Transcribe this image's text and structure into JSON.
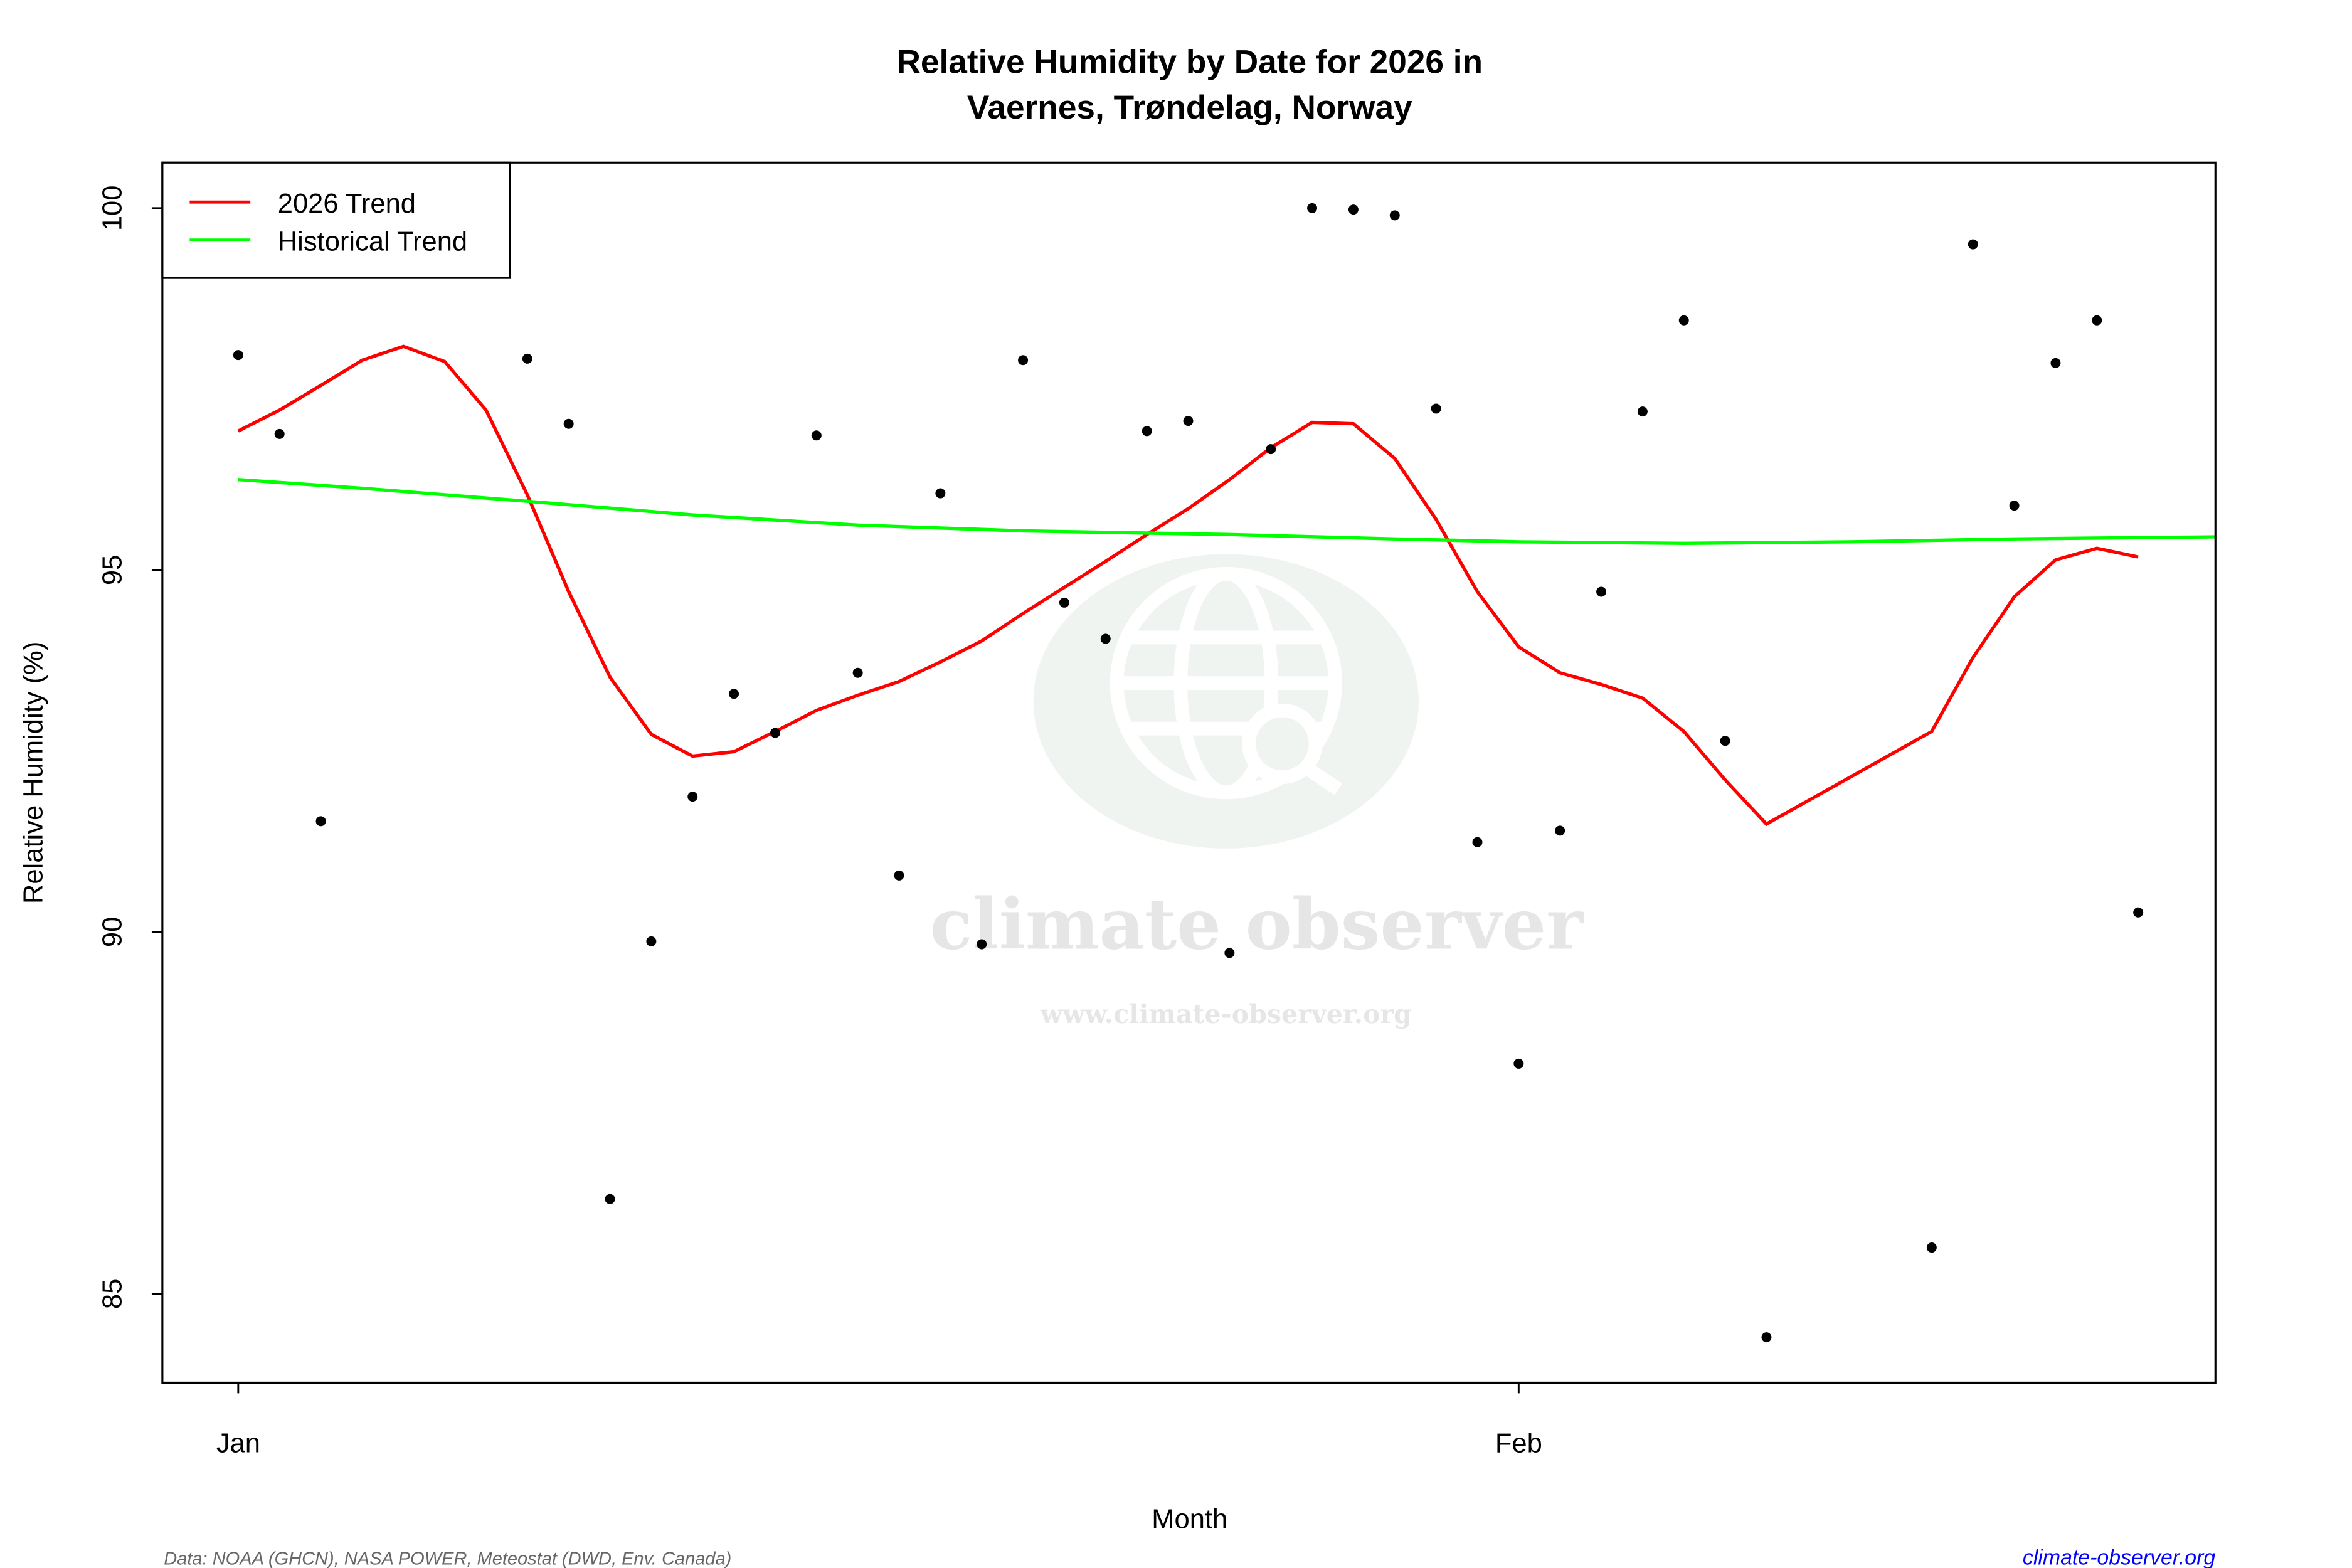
{
  "chart_data": {
    "type": "scatter",
    "title": "Relative Humidity by Date for 2026 in",
    "subtitle": "Vaernes, Trøndelag, Norway",
    "xlabel": "Month",
    "ylabel": "Relative Humidity (%)",
    "xlim": [
      "2025-12-30",
      "2026-02-17"
    ],
    "ylim": [
      83.8,
      100.6
    ],
    "x_ticks": [
      {
        "date": "2026-01-01",
        "label": "Jan"
      },
      {
        "date": "2026-02-01",
        "label": "Feb"
      }
    ],
    "y_ticks": [
      85,
      90,
      95,
      100
    ],
    "grid": false,
    "legend": {
      "placement": "top-left",
      "entries": [
        {
          "label": "2026 Trend",
          "color": "#ff0000"
        },
        {
          "label": "Historical Trend",
          "color": "#00ff00"
        }
      ]
    },
    "series": [
      {
        "type": "scatter",
        "color": "#000000",
        "points": [
          [
            "2026-01-01",
            97.97
          ],
          [
            "2026-01-02",
            96.88
          ],
          [
            "2026-01-03",
            91.53
          ],
          [
            "2026-01-08",
            97.92
          ],
          [
            "2026-01-09",
            97.02
          ],
          [
            "2026-01-10",
            86.31
          ],
          [
            "2026-01-11",
            89.87
          ],
          [
            "2026-01-12",
            91.87
          ],
          [
            "2026-01-13",
            93.29
          ],
          [
            "2026-01-14",
            92.75
          ],
          [
            "2026-01-15",
            96.86
          ],
          [
            "2026-01-16",
            93.58
          ],
          [
            "2026-01-17",
            90.78
          ],
          [
            "2026-01-18",
            96.06
          ],
          [
            "2026-01-19",
            89.83
          ],
          [
            "2026-01-20",
            97.9
          ],
          [
            "2026-01-21",
            94.55
          ],
          [
            "2026-01-22",
            94.05
          ],
          [
            "2026-01-23",
            96.92
          ],
          [
            "2026-01-24",
            97.06
          ],
          [
            "2026-01-25",
            89.71
          ],
          [
            "2026-01-26",
            96.67
          ],
          [
            "2026-01-27",
            100.0
          ],
          [
            "2026-01-28",
            99.98
          ],
          [
            "2026-01-29",
            99.9
          ],
          [
            "2026-01-30",
            97.23
          ],
          [
            "2026-01-31",
            91.24
          ],
          [
            "2026-02-01",
            88.18
          ],
          [
            "2026-02-02",
            91.4
          ],
          [
            "2026-02-03",
            94.7
          ],
          [
            "2026-02-04",
            97.19
          ],
          [
            "2026-02-05",
            98.45
          ],
          [
            "2026-02-06",
            92.64
          ],
          [
            "2026-02-07",
            84.4
          ],
          [
            "2026-02-11",
            85.64
          ],
          [
            "2026-02-12",
            99.5
          ],
          [
            "2026-02-13",
            95.89
          ],
          [
            "2026-02-14",
            97.86
          ],
          [
            "2026-02-15",
            98.45
          ],
          [
            "2026-02-16",
            90.27
          ]
        ]
      },
      {
        "name": "2026 Trend",
        "type": "line",
        "color": "#ff0000",
        "points": [
          [
            "2026-01-01",
            96.92
          ],
          [
            "2026-01-02",
            97.21
          ],
          [
            "2026-01-03",
            97.55
          ],
          [
            "2026-01-04",
            97.9
          ],
          [
            "2026-01-05",
            98.09
          ],
          [
            "2026-01-06",
            97.88
          ],
          [
            "2026-01-07",
            97.21
          ],
          [
            "2026-01-08",
            96.04
          ],
          [
            "2026-01-09",
            94.7
          ],
          [
            "2026-01-10",
            93.52
          ],
          [
            "2026-01-11",
            92.73
          ],
          [
            "2026-01-12",
            92.43
          ],
          [
            "2026-01-13",
            92.49
          ],
          [
            "2026-01-14",
            92.77
          ],
          [
            "2026-01-15",
            93.06
          ],
          [
            "2026-01-16",
            93.27
          ],
          [
            "2026-01-17",
            93.46
          ],
          [
            "2026-01-18",
            93.73
          ],
          [
            "2026-01-19",
            94.02
          ],
          [
            "2026-01-20",
            94.4
          ],
          [
            "2026-01-21",
            94.76
          ],
          [
            "2026-01-22",
            95.12
          ],
          [
            "2026-01-23",
            95.49
          ],
          [
            "2026-01-24",
            95.85
          ],
          [
            "2026-01-25",
            96.25
          ],
          [
            "2026-01-26",
            96.69
          ],
          [
            "2026-01-27",
            97.04
          ],
          [
            "2026-01-28",
            97.02
          ],
          [
            "2026-01-29",
            96.54
          ],
          [
            "2026-01-30",
            95.7
          ],
          [
            "2026-01-31",
            94.7
          ],
          [
            "2026-02-01",
            93.94
          ],
          [
            "2026-02-02",
            93.58
          ],
          [
            "2026-02-03",
            93.42
          ],
          [
            "2026-02-04",
            93.23
          ],
          [
            "2026-02-05",
            92.77
          ],
          [
            "2026-02-06",
            92.1
          ],
          [
            "2026-02-07",
            91.49
          ],
          [
            "2026-02-11",
            92.77
          ],
          [
            "2026-02-12",
            93.79
          ],
          [
            "2026-02-13",
            94.63
          ],
          [
            "2026-02-14",
            95.14
          ],
          [
            "2026-02-15",
            95.3
          ],
          [
            "2026-02-16",
            95.18
          ]
        ]
      },
      {
        "name": "Historical Trend",
        "type": "line",
        "color": "#00ff00",
        "points": [
          [
            "2026-01-01",
            96.25
          ],
          [
            "2026-01-04",
            96.13
          ],
          [
            "2026-01-08",
            95.95
          ],
          [
            "2026-01-12",
            95.76
          ],
          [
            "2026-01-16",
            95.62
          ],
          [
            "2026-01-20",
            95.54
          ],
          [
            "2026-01-25",
            95.49
          ],
          [
            "2026-01-29",
            95.43
          ],
          [
            "2026-02-01",
            95.39
          ],
          [
            "2026-02-05",
            95.37
          ],
          [
            "2026-02-09",
            95.39
          ],
          [
            "2026-02-13",
            95.43
          ],
          [
            "2026-02-18",
            95.46
          ]
        ]
      }
    ]
  },
  "footer": {
    "source": "Data: NOAA (GHCN), NASA POWER, Meteostat (DWD, Env. Canada)",
    "site_link": "climate-observer.org",
    "link_color": "#0000ff"
  },
  "watermark": {
    "name": "climate observer",
    "url": "www.climate-observer.org",
    "icon": "globe-search-icon"
  }
}
